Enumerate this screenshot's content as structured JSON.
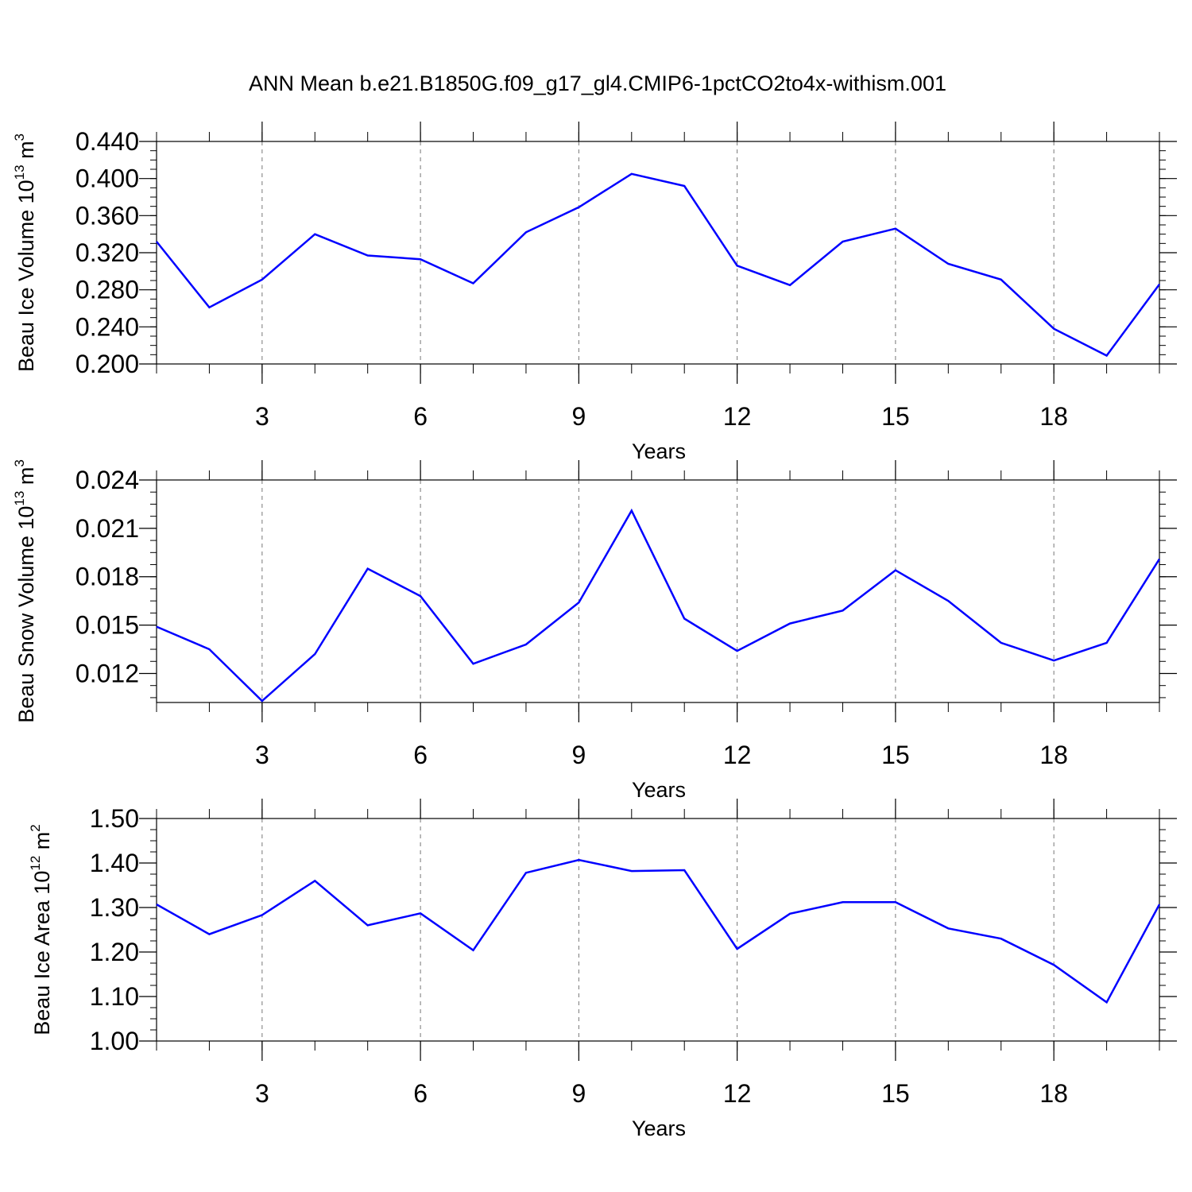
{
  "title": "ANN Mean b.e21.B1850G.f09_g17_gl4.CMIP6-1pctCO2to4x-withism.001",
  "chart_data": [
    {
      "type": "line",
      "ylabel": {
        "base": "Beau Ice Volume 10",
        "exp": "13",
        "unit": " m",
        "unit_exp": "3"
      },
      "xlabel": "Years",
      "xlim": [
        1,
        20
      ],
      "ylim": [
        0.2,
        0.44
      ],
      "xticks": [
        3,
        6,
        9,
        12,
        15,
        18
      ],
      "yticks": [
        0.2,
        0.24,
        0.28,
        0.32,
        0.36,
        0.4,
        0.44
      ],
      "ytick_labels": [
        "0.200",
        "0.240",
        "0.280",
        "0.320",
        "0.360",
        "0.400",
        "0.440"
      ],
      "grid": "vertical-dashed",
      "color": "#0000ff",
      "x": [
        1,
        2,
        3,
        4,
        5,
        6,
        7,
        8,
        9,
        10,
        11,
        12,
        13,
        14,
        15,
        16,
        17,
        18,
        19,
        20
      ],
      "values": [
        0.332,
        0.261,
        0.291,
        0.34,
        0.317,
        0.313,
        0.287,
        0.342,
        0.369,
        0.405,
        0.392,
        0.306,
        0.285,
        0.332,
        0.346,
        0.308,
        0.291,
        0.238,
        0.209,
        0.286
      ]
    },
    {
      "type": "line",
      "ylabel": {
        "base": "Beau Snow Volume 10",
        "exp": "13",
        "unit": " m",
        "unit_exp": "3"
      },
      "xlabel": "Years",
      "xlim": [
        1,
        20
      ],
      "ylim": [
        0.0102,
        0.024
      ],
      "xticks": [
        3,
        6,
        9,
        12,
        15,
        18
      ],
      "yticks": [
        0.012,
        0.015,
        0.018,
        0.021,
        0.024
      ],
      "ytick_labels": [
        "0.012",
        "0.015",
        "0.018",
        "0.021",
        "0.024"
      ],
      "grid": "vertical-dashed",
      "color": "#0000ff",
      "x": [
        1,
        2,
        3,
        4,
        5,
        6,
        7,
        8,
        9,
        10,
        11,
        12,
        13,
        14,
        15,
        16,
        17,
        18,
        19,
        20
      ],
      "values": [
        0.0149,
        0.0135,
        0.0103,
        0.0132,
        0.0185,
        0.0168,
        0.0126,
        0.0138,
        0.0164,
        0.0221,
        0.0154,
        0.0134,
        0.0151,
        0.0159,
        0.0184,
        0.0165,
        0.0139,
        0.0128,
        0.0139,
        0.0191
      ]
    },
    {
      "type": "line",
      "ylabel": {
        "base": "Beau Ice Area 10",
        "exp": "12",
        "unit": " m",
        "unit_exp": "2"
      },
      "xlabel": "Years",
      "xlim": [
        1,
        20
      ],
      "ylim": [
        1.0,
        1.5
      ],
      "xticks": [
        3,
        6,
        9,
        12,
        15,
        18
      ],
      "yticks": [
        1.0,
        1.1,
        1.2,
        1.3,
        1.4,
        1.5
      ],
      "ytick_labels": [
        "1.00",
        "1.10",
        "1.20",
        "1.30",
        "1.40",
        "1.50"
      ],
      "grid": "vertical-dashed",
      "color": "#0000ff",
      "x": [
        1,
        2,
        3,
        4,
        5,
        6,
        7,
        8,
        9,
        10,
        11,
        12,
        13,
        14,
        15,
        16,
        17,
        18,
        19,
        20
      ],
      "values": [
        1.307,
        1.24,
        1.283,
        1.36,
        1.26,
        1.287,
        1.204,
        1.378,
        1.407,
        1.382,
        1.384,
        1.207,
        1.286,
        1.312,
        1.312,
        1.253,
        1.23,
        1.171,
        1.087,
        1.307
      ]
    }
  ]
}
